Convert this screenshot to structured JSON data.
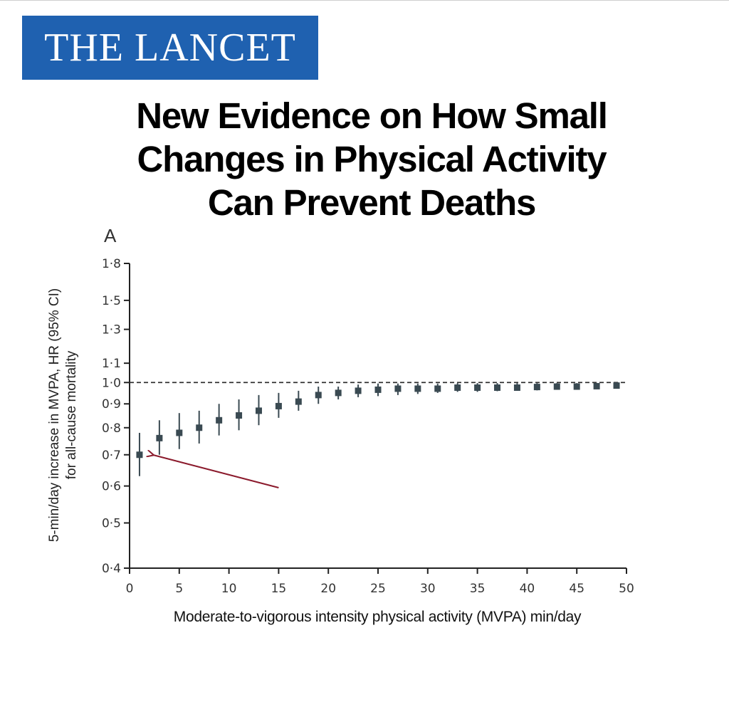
{
  "logo": {
    "text": "THE LANCET"
  },
  "headline": {
    "line1": "New Evidence on How Small",
    "line2": "Changes in Physical Activity",
    "line3": "Can Prevent Deaths"
  },
  "colors": {
    "logo_bg": "#1f61b0",
    "marker": "#3a4a52",
    "arrow": "#8b1a2c",
    "axis": "#222222"
  },
  "chart_data": {
    "type": "scatter",
    "panel_label": "A",
    "title": "",
    "xlabel": "Moderate-to-vigorous intensity physical activity (MVPA) min/day",
    "ylabel_line1": "5-min/day increase in MVPA, HR (95% CI)",
    "ylabel_line2": "for all-cause mortality",
    "xlim": [
      0,
      50
    ],
    "ylim": [
      0.4,
      1.8
    ],
    "yscale": "log",
    "xticks": [
      0,
      5,
      10,
      15,
      20,
      25,
      30,
      35,
      40,
      45,
      50
    ],
    "yticks": [
      {
        "value": 0.4,
        "label": "0·4"
      },
      {
        "value": 0.5,
        "label": "0·5"
      },
      {
        "value": 0.6,
        "label": "0·6"
      },
      {
        "value": 0.7,
        "label": "0·7"
      },
      {
        "value": 0.8,
        "label": "0·8"
      },
      {
        "value": 0.9,
        "label": "0·9"
      },
      {
        "value": 1.0,
        "label": "1·0"
      },
      {
        "value": 1.1,
        "label": "1·1"
      },
      {
        "value": 1.3,
        "label": "1·3"
      },
      {
        "value": 1.5,
        "label": "1·5"
      },
      {
        "value": 1.8,
        "label": "1·8"
      }
    ],
    "reference_line": 1.0,
    "points": [
      {
        "x": 1,
        "hr": 0.7,
        "lo": 0.63,
        "hi": 0.78
      },
      {
        "x": 3,
        "hr": 0.76,
        "lo": 0.7,
        "hi": 0.83
      },
      {
        "x": 5,
        "hr": 0.78,
        "lo": 0.72,
        "hi": 0.86
      },
      {
        "x": 7,
        "hr": 0.8,
        "lo": 0.74,
        "hi": 0.87
      },
      {
        "x": 9,
        "hr": 0.83,
        "lo": 0.77,
        "hi": 0.9
      },
      {
        "x": 11,
        "hr": 0.85,
        "lo": 0.79,
        "hi": 0.92
      },
      {
        "x": 13,
        "hr": 0.87,
        "lo": 0.81,
        "hi": 0.94
      },
      {
        "x": 15,
        "hr": 0.89,
        "lo": 0.84,
        "hi": 0.95
      },
      {
        "x": 17,
        "hr": 0.91,
        "lo": 0.87,
        "hi": 0.96
      },
      {
        "x": 19,
        "hr": 0.94,
        "lo": 0.9,
        "hi": 0.98
      },
      {
        "x": 21,
        "hr": 0.95,
        "lo": 0.92,
        "hi": 0.98
      },
      {
        "x": 23,
        "hr": 0.96,
        "lo": 0.93,
        "hi": 0.99
      },
      {
        "x": 25,
        "hr": 0.965,
        "lo": 0.935,
        "hi": 0.995
      },
      {
        "x": 27,
        "hr": 0.97,
        "lo": 0.94,
        "hi": 0.995
      },
      {
        "x": 29,
        "hr": 0.97,
        "lo": 0.945,
        "hi": 0.995
      },
      {
        "x": 31,
        "hr": 0.97,
        "lo": 0.95,
        "hi": 0.995
      },
      {
        "x": 33,
        "hr": 0.975,
        "lo": 0.955,
        "hi": 0.997
      },
      {
        "x": 35,
        "hr": 0.975,
        "lo": 0.955,
        "hi": 0.997
      },
      {
        "x": 37,
        "hr": 0.975,
        "lo": 0.958,
        "hi": 0.997
      },
      {
        "x": 39,
        "hr": 0.975,
        "lo": 0.96,
        "hi": 0.997
      },
      {
        "x": 41,
        "hr": 0.978,
        "lo": 0.962,
        "hi": 0.997
      },
      {
        "x": 43,
        "hr": 0.98,
        "lo": 0.965,
        "hi": 0.997
      },
      {
        "x": 45,
        "hr": 0.98,
        "lo": 0.967,
        "hi": 0.997
      },
      {
        "x": 47,
        "hr": 0.982,
        "lo": 0.97,
        "hi": 0.998
      },
      {
        "x": 49,
        "hr": 0.985,
        "lo": 0.973,
        "hi": 0.998
      }
    ],
    "annotation": {
      "type": "arrow",
      "points_to": {
        "x": 2.3,
        "hr": 0.7
      },
      "from": {
        "x": 15,
        "hr": 0.595
      }
    }
  }
}
